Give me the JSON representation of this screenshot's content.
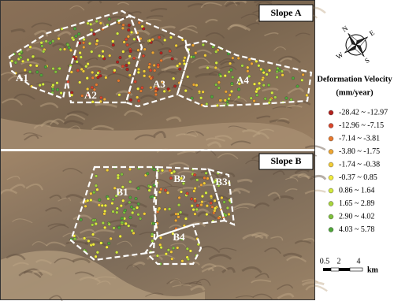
{
  "panels": [
    {
      "label": "Slope A",
      "regions": [
        "A1",
        "A2",
        "A3",
        "A4"
      ]
    },
    {
      "label": "Slope B",
      "regions": [
        "B1",
        "B2",
        "B3",
        "B4"
      ]
    }
  ],
  "compass": [
    "N",
    "E",
    "S",
    "W"
  ],
  "legend": {
    "title": "Deformation Velocity",
    "unit": "(mm/year)",
    "items": [
      {
        "label": "-28.42 ~ -12.97",
        "color": "#b3201c"
      },
      {
        "label": "-12.96 ~ -7.15",
        "color": "#d9452b"
      },
      {
        "label": "-7.14 ~ -3.81",
        "color": "#e8792d"
      },
      {
        "label": "-3.80 ~ -1.75",
        "color": "#eea632"
      },
      {
        "label": "-1.74 ~ -0.38",
        "color": "#f3cd36"
      },
      {
        "label": "-0.37 ~ 0.85",
        "color": "#f1ec3b"
      },
      {
        "label": "0.86 ~ 1.64",
        "color": "#d3ea3e"
      },
      {
        "label": "1.65 ~ 2.89",
        "color": "#a9d63d"
      },
      {
        "label": "2.90 ~ 4.02",
        "color": "#7fc13b"
      },
      {
        "label": "4.03 ~ 5.78",
        "color": "#4fa63a"
      }
    ]
  },
  "scale_bar": {
    "ticks": [
      "0.5",
      "2",
      "4"
    ],
    "unit": "km"
  }
}
